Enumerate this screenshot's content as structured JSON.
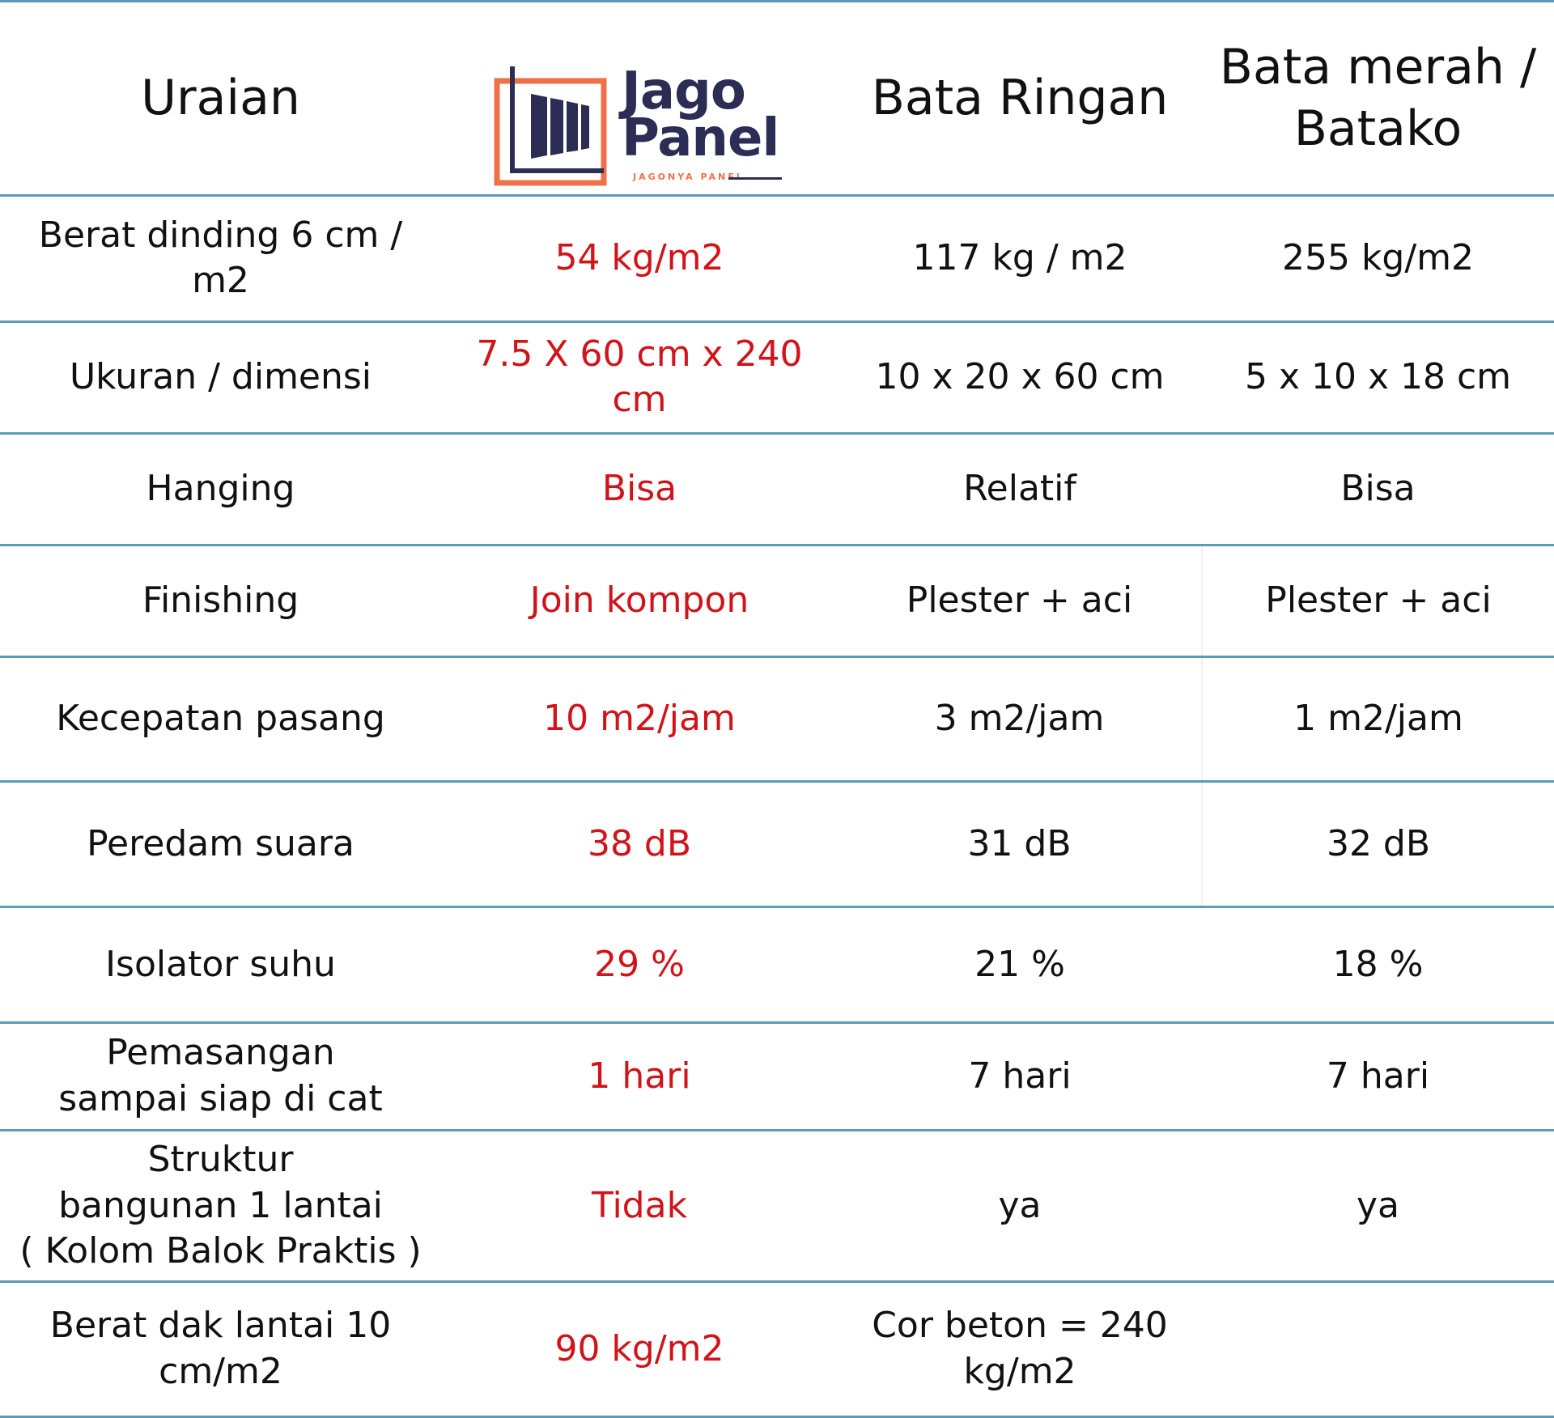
{
  "header": {
    "col1": "Uraian",
    "brand": {
      "line1": "Jago",
      "line2": "Panel",
      "tagline": "JAGONYA PANEL",
      "colors": {
        "frame": "#f0704a",
        "navy": "#2b2d54"
      }
    },
    "col3": "Bata Ringan",
    "col4": "Bata merah /\nBatako"
  },
  "rows": [
    {
      "label": "Berat dinding 6 cm / m2",
      "jago": "54  kg/m2",
      "bata_ringan": "117 kg / m2",
      "bata_merah": "255 kg/m2"
    },
    {
      "label": "Ukuran / dimensi",
      "jago": "7.5 X 60 cm x 240 cm",
      "bata_ringan": "10 x 20 x 60 cm",
      "bata_merah": "5 x 10 x 18 cm"
    },
    {
      "label": "Hanging",
      "jago": "Bisa",
      "bata_ringan": "Relatif",
      "bata_merah": "Bisa"
    },
    {
      "label": "Finishing",
      "jago": "Join kompon",
      "bata_ringan": "Plester + aci",
      "bata_merah": "Plester + aci"
    },
    {
      "label": "Kecepatan pasang",
      "jago": "10 m2/jam",
      "bata_ringan": "3 m2/jam",
      "bata_merah": "1 m2/jam"
    },
    {
      "label": "Peredam suara",
      "jago": "38 dB",
      "bata_ringan": "31 dB",
      "bata_merah": "32 dB"
    },
    {
      "label": "Isolator suhu",
      "jago": "29 %",
      "bata_ringan": "21 %",
      "bata_merah": "18 %"
    },
    {
      "label": "Pemasangan\nsampai siap di cat",
      "jago": "1 hari",
      "bata_ringan": "7 hari",
      "bata_merah": "7 hari"
    },
    {
      "label": "Struktur\nbangunan 1 lantai\n( Kolom Balok Praktis )",
      "jago": "Tidak",
      "bata_ringan": "ya",
      "bata_merah": "ya"
    },
    {
      "label": "Berat dak lantai 10\ncm/m2",
      "jago": "90 kg/m2",
      "bata_ringan": "Cor beton = 240\nkg/m2",
      "bata_merah": ""
    }
  ],
  "colors": {
    "accent_red": "#d0141a",
    "divider_blue": "#5b9bb5",
    "text": "#111111"
  }
}
